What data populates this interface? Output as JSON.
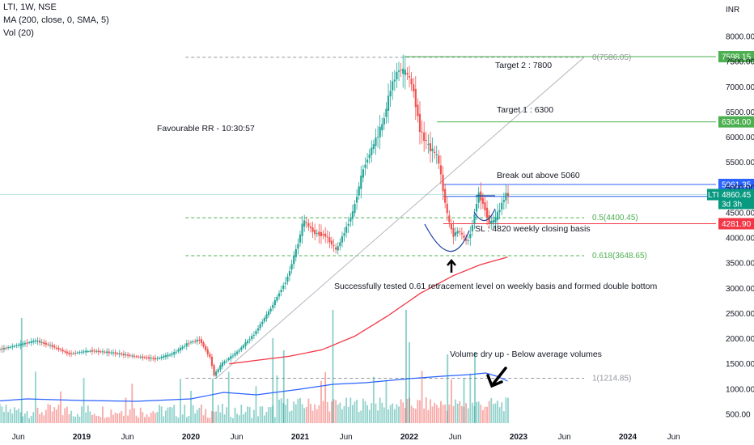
{
  "symbol_line": "LTI, 1W, NSE",
  "ma_line": "MA (200, close, 0, SMA, 5)",
  "vol_line": "Vol (20)",
  "currency": "INR",
  "chart_data": {
    "type": "candlestick",
    "y_ticks": [
      "8000.00",
      "7500.00",
      "7000.00",
      "6500.00",
      "6000.00",
      "5500.00",
      "5000.00",
      "4500.00",
      "4000.00",
      "3500.00",
      "3000.00",
      "2500.00",
      "2000.00",
      "1500.00",
      "1000.00",
      "500.00"
    ],
    "y_tick_values": [
      8000,
      7500,
      7000,
      6500,
      6000,
      5500,
      5000,
      4500,
      4000,
      3500,
      3000,
      2500,
      2000,
      1500,
      1000,
      500
    ],
    "x_ticks": [
      {
        "label": "Jun",
        "t": 2018.42
      },
      {
        "label": "2019",
        "t": 2019.0
      },
      {
        "label": "Jun",
        "t": 2019.42
      },
      {
        "label": "2020",
        "t": 2020.0
      },
      {
        "label": "Jun",
        "t": 2020.42
      },
      {
        "label": "2021",
        "t": 2021.0
      },
      {
        "label": "Jun",
        "t": 2021.42
      },
      {
        "label": "2022",
        "t": 2022.0
      },
      {
        "label": "Jun",
        "t": 2022.42
      },
      {
        "label": "2023",
        "t": 2023.0
      },
      {
        "label": "Jun",
        "t": 2023.42
      },
      {
        "label": "2024",
        "t": 2024.0
      },
      {
        "label": "Jun",
        "t": 2024.42
      }
    ],
    "price_path": [
      [
        2018.0,
        1650
      ],
      [
        2018.25,
        1780
      ],
      [
        2018.45,
        1880
      ],
      [
        2018.6,
        1960
      ],
      [
        2018.75,
        1850
      ],
      [
        2018.9,
        1700
      ],
      [
        2019.1,
        1760
      ],
      [
        2019.3,
        1720
      ],
      [
        2019.5,
        1650
      ],
      [
        2019.7,
        1600
      ],
      [
        2019.85,
        1700
      ],
      [
        2020.0,
        1920
      ],
      [
        2020.1,
        1980
      ],
      [
        2020.2,
        1600
      ],
      [
        2020.23,
        1270
      ],
      [
        2020.3,
        1500
      ],
      [
        2020.45,
        1750
      ],
      [
        2020.6,
        2100
      ],
      [
        2020.75,
        2600
      ],
      [
        2020.9,
        3200
      ],
      [
        2021.0,
        3900
      ],
      [
        2021.05,
        4350
      ],
      [
        2021.15,
        4100
      ],
      [
        2021.25,
        4050
      ],
      [
        2021.35,
        3750
      ],
      [
        2021.5,
        4500
      ],
      [
        2021.6,
        5400
      ],
      [
        2021.7,
        5900
      ],
      [
        2021.78,
        6300
      ],
      [
        2021.85,
        7000
      ],
      [
        2021.92,
        7350
      ],
      [
        2022.0,
        7250
      ],
      [
        2022.05,
        7000
      ],
      [
        2022.12,
        6100
      ],
      [
        2022.2,
        5800
      ],
      [
        2022.28,
        5600
      ],
      [
        2022.32,
        5050
      ],
      [
        2022.37,
        4400
      ],
      [
        2022.42,
        4050
      ],
      [
        2022.47,
        4150
      ],
      [
        2022.55,
        3900
      ],
      [
        2022.6,
        4300
      ],
      [
        2022.65,
        4900
      ],
      [
        2022.7,
        4650
      ],
      [
        2022.75,
        4300
      ],
      [
        2022.8,
        4350
      ],
      [
        2022.85,
        4600
      ],
      [
        2022.9,
        4860
      ]
    ],
    "ma_path": [
      [
        2020.35,
        1500
      ],
      [
        2020.6,
        1570
      ],
      [
        2020.9,
        1650
      ],
      [
        2021.2,
        1780
      ],
      [
        2021.5,
        2050
      ],
      [
        2021.8,
        2450
      ],
      [
        2022.1,
        2900
      ],
      [
        2022.4,
        3250
      ],
      [
        2022.65,
        3470
      ],
      [
        2022.9,
        3620
      ]
    ],
    "ma_name": "MA (200, close, 0, SMA, 5)",
    "volume_avg_path": [
      [
        2018.0,
        25
      ],
      [
        2018.5,
        30
      ],
      [
        2019.0,
        28
      ],
      [
        2019.5,
        27
      ],
      [
        2020.0,
        30
      ],
      [
        2020.3,
        38
      ],
      [
        2020.6,
        35
      ],
      [
        2021.0,
        42
      ],
      [
        2021.3,
        48
      ],
      [
        2021.6,
        50
      ],
      [
        2022.0,
        55
      ],
      [
        2022.3,
        58
      ],
      [
        2022.55,
        60
      ],
      [
        2022.7,
        62
      ],
      [
        2022.8,
        58
      ],
      [
        2022.9,
        52
      ]
    ],
    "volume_name": "Vol (20)",
    "fib_levels": [
      {
        "label": "0(7586.05)",
        "value": 7586.05
      },
      {
        "label": "0.5(4400.45)",
        "value": 4400.45
      },
      {
        "label": "0.618(3648.65)",
        "value": 3648.65
      },
      {
        "label": "1(1214.85)",
        "value": 1214.85
      }
    ],
    "horizontal_levels": [
      {
        "label": "7598.15",
        "value": 7598.15,
        "color": "#4caf50"
      },
      {
        "label": "6304.00",
        "value": 6304.0,
        "color": "#4caf50"
      },
      {
        "label": "5061.35",
        "value": 5061.35,
        "color": "#2962ff"
      },
      {
        "label": "4823.85",
        "value": 4823.85,
        "color": "#2962ff"
      },
      {
        "label": "4281.90",
        "value": 4281.9,
        "color": "#f23645"
      }
    ],
    "last_price": {
      "symbol": "LTI",
      "value": "4860.45",
      "countdown": "3d 3h",
      "numeric": 4860.45
    },
    "annotations": {
      "target2": "Target 2 : 7800",
      "target1": "Target 1 : 6300",
      "breakout": "Break out above 5060",
      "rr": "Favourable RR - 10:30:57",
      "sl": "SL : 4820 weekly closing basis",
      "fib_test": "Successfully tested 0.61 retracement level on weekly basis and formed double bottom",
      "volume": "Volume dry up - Below average volumes"
    },
    "colors": {
      "up": "#26a69a",
      "down": "#ef5350",
      "ma": "#f23645",
      "vol_avg": "#2962ff",
      "fib": "#4caf50",
      "grid": "#787b86"
    }
  }
}
